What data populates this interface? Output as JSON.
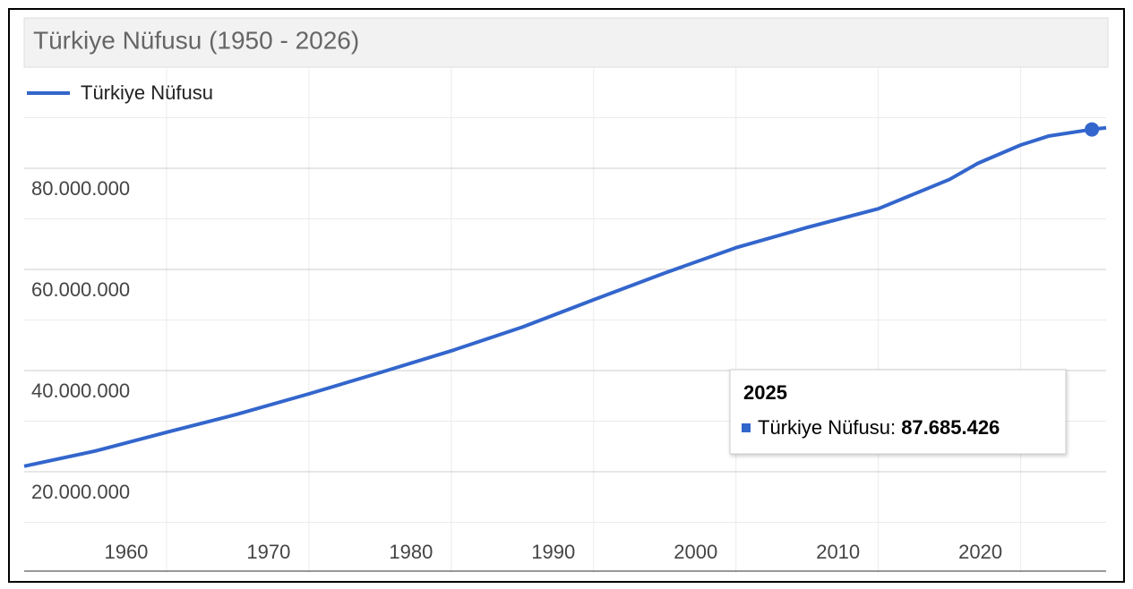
{
  "chart_data": {
    "type": "line",
    "title": "Türkiye Nüfusu (1950 - 2026)",
    "x": [
      1950,
      1955,
      1960,
      1965,
      1970,
      1975,
      1980,
      1985,
      1990,
      1995,
      2000,
      2005,
      2010,
      2015,
      2017,
      2020,
      2022,
      2025,
      2026
    ],
    "series": [
      {
        "name": "Türkiye Nüfusu",
        "color": "#3366cc",
        "values": [
          21100000,
          24100000,
          27800000,
          31400000,
          35400000,
          39600000,
          43900000,
          48600000,
          54000000,
          59300000,
          64300000,
          68300000,
          72000000,
          77800000,
          81000000,
          84600000,
          86400000,
          87685426,
          88000000
        ],
        "value_labels": [
          null,
          null,
          null,
          null,
          null,
          null,
          null,
          null,
          null,
          null,
          null,
          null,
          null,
          null,
          null,
          null,
          null,
          "87.685.426",
          null
        ]
      }
    ],
    "xlim": [
      1950,
      2026
    ],
    "xticks": [
      1960,
      1970,
      1980,
      1990,
      2000,
      2010,
      2020
    ],
    "ylim": [
      0,
      100000000
    ],
    "yticks": [
      {
        "value": 20000000,
        "label": "20.000.000"
      },
      {
        "value": 40000000,
        "label": "40.000.000"
      },
      {
        "value": 60000000,
        "label": "60.000.000"
      },
      {
        "value": 80000000,
        "label": "80.000.000"
      }
    ],
    "minor_yticks": [
      10000000,
      30000000,
      50000000,
      70000000,
      90000000
    ],
    "grid": true,
    "legend": "top-left",
    "tooltip_index": 17,
    "tooltip_label": "Türkiye Nüfusu:"
  }
}
